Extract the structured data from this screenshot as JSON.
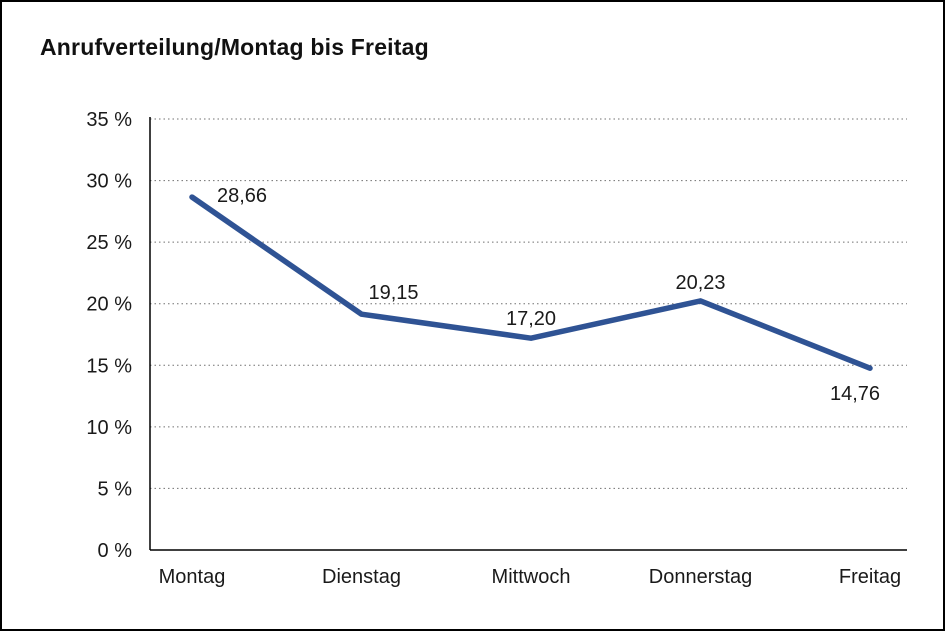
{
  "title": "Anrufverteilung/Montag bis Freitag",
  "chart_data": {
    "type": "line",
    "title": "Anrufverteilung/Montag bis Freitag",
    "categories": [
      "Montag",
      "Dienstag",
      "Mittwoch",
      "Donnerstag",
      "Freitag"
    ],
    "values": [
      28.66,
      19.15,
      17.2,
      20.23,
      14.76
    ],
    "value_labels": [
      "28,66",
      "19,15",
      "17,20",
      "20,23",
      "14,76"
    ],
    "xlabel": "",
    "ylabel": "",
    "ylim": [
      0,
      35
    ],
    "ytick_step": 5,
    "ytick_suffix": " %",
    "ytick_labels": [
      "0 %",
      "5 %",
      "10 %",
      "15 %",
      "20 %",
      "25 %",
      "30 %",
      "35 %"
    ],
    "grid": "horizontal-dotted",
    "legend": "none",
    "line_color": "#2f5394",
    "axis_color": "#000000",
    "grid_color": "#707070",
    "label_color": "#1a1a1a"
  }
}
